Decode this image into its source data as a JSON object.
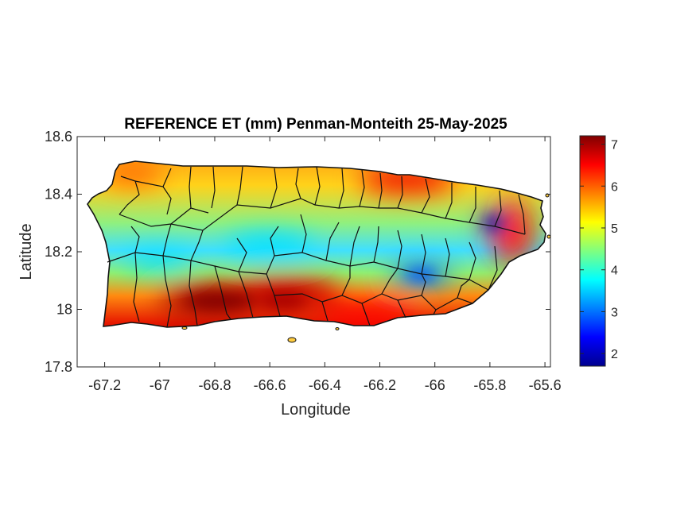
{
  "chart_data": {
    "type": "heatmap",
    "title": "REFERENCE ET (mm) Penman-Monteith 25-May-2025",
    "xlabel": "Longitude",
    "ylabel": "Latitude",
    "xlim": [
      -67.3,
      -65.58
    ],
    "ylim": [
      17.8,
      18.6
    ],
    "x_ticks": [
      "-67.2",
      "-67",
      "-66.8",
      "-66.6",
      "-66.4",
      "-66.2",
      "-66",
      "-65.8",
      "-65.6"
    ],
    "y_ticks": [
      "18.6",
      "18.4",
      "18.2",
      "18",
      "17.8"
    ],
    "colorbar": {
      "colormap": "jet",
      "range": [
        1.7,
        7.2
      ],
      "ticks": [
        "7",
        "6",
        "5",
        "4",
        "3",
        "2"
      ]
    },
    "region": "Puerto Rico municipalities",
    "hotspots": [
      {
        "lon": -66.8,
        "lat": 18.03,
        "value": 7.0
      },
      {
        "lon": -66.55,
        "lat": 18.05,
        "value": 6.8
      },
      {
        "lon": -66.25,
        "lat": 17.98,
        "value": 6.5
      },
      {
        "lon": -66.1,
        "lat": 18.45,
        "value": 6.6
      },
      {
        "lon": -65.72,
        "lat": 18.27,
        "value": 6.3
      },
      {
        "lon": -67.1,
        "lat": 18.47,
        "value": 6.0
      }
    ],
    "coldspots": [
      {
        "lon": -65.79,
        "lat": 18.3,
        "value": 2.0
      },
      {
        "lon": -66.05,
        "lat": 18.12,
        "value": 3.0
      },
      {
        "lon": -66.6,
        "lat": 18.22,
        "value": 3.6
      },
      {
        "lon": -67.0,
        "lat": 18.17,
        "value": 3.6
      }
    ]
  }
}
